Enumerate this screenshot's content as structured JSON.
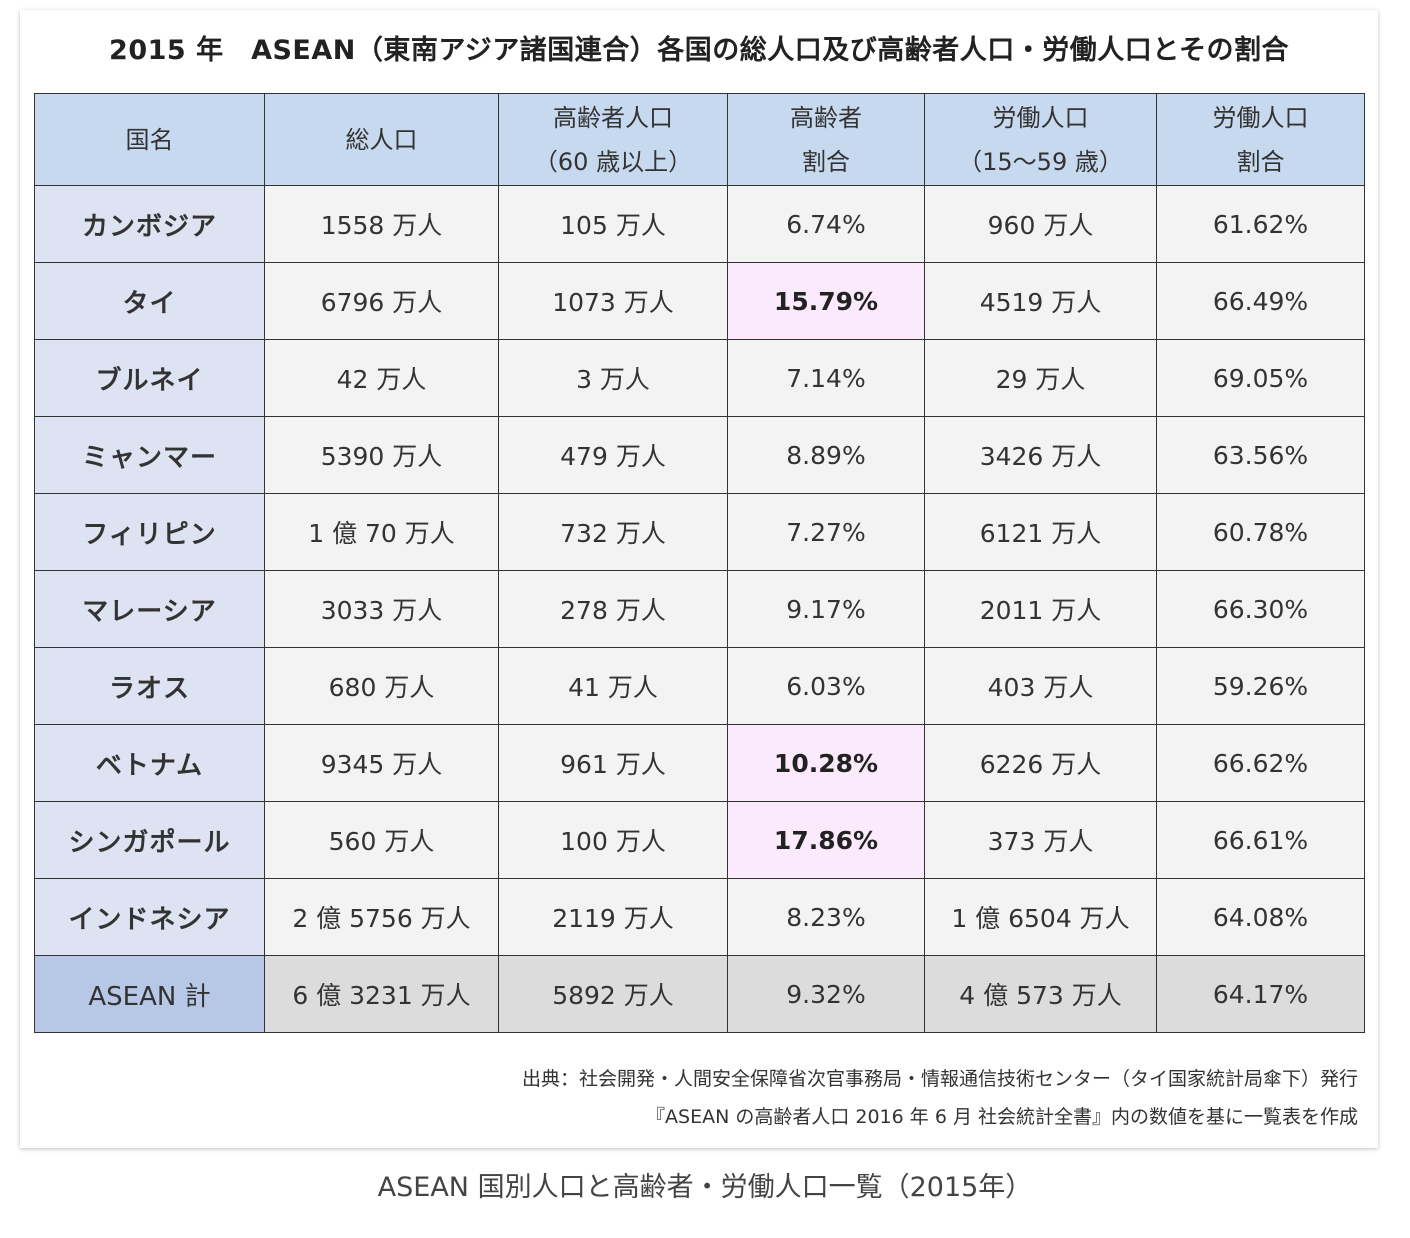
{
  "title": "2015 年　ASEAN（東南アジア諸国連合）各国の総人口及び高齢者人口・労働人口とその割合",
  "headers": [
    {
      "line1": "国名",
      "line2": ""
    },
    {
      "line1": "総人口",
      "line2": ""
    },
    {
      "line1": "高齢者人口",
      "line2": "（60 歳以上）"
    },
    {
      "line1": "高齢者",
      "line2": "割合"
    },
    {
      "line1": "労働人口",
      "line2": "（15〜59 歳）"
    },
    {
      "line1": "労働人口",
      "line2": "割合"
    }
  ],
  "rows": [
    {
      "country": "カンボジア",
      "total": "1558 万人",
      "elderly": "105 万人",
      "elderly_ratio": "6.74%",
      "labor": "960 万人",
      "labor_ratio": "61.62%"
    },
    {
      "country": "タイ",
      "total": "6796 万人",
      "elderly": "1073 万人",
      "elderly_ratio": "15.79%",
      "labor": "4519 万人",
      "labor_ratio": "66.49%"
    },
    {
      "country": "ブルネイ",
      "total": "42 万人",
      "elderly": "3 万人",
      "elderly_ratio": "7.14%",
      "labor": "29 万人",
      "labor_ratio": "69.05%"
    },
    {
      "country": "ミャンマー",
      "total": "5390 万人",
      "elderly": "479 万人",
      "elderly_ratio": "8.89%",
      "labor": "3426 万人",
      "labor_ratio": "63.56%"
    },
    {
      "country": "フィリピン",
      "total": "1 億 70 万人",
      "elderly": "732 万人",
      "elderly_ratio": "7.27%",
      "labor": "6121 万人",
      "labor_ratio": "60.78%"
    },
    {
      "country": "マレーシア",
      "total": "3033 万人",
      "elderly": "278 万人",
      "elderly_ratio": "9.17%",
      "labor": "2011 万人",
      "labor_ratio": "66.30%"
    },
    {
      "country": "ラオス",
      "total": "680 万人",
      "elderly": "41 万人",
      "elderly_ratio": "6.03%",
      "labor": "403 万人",
      "labor_ratio": "59.26%"
    },
    {
      "country": "ベトナム",
      "total": "9345 万人",
      "elderly": "961 万人",
      "elderly_ratio": "10.28%",
      "labor": "6226 万人",
      "labor_ratio": "66.62%"
    },
    {
      "country": "シンガポール",
      "total": "560 万人",
      "elderly": "100 万人",
      "elderly_ratio": "17.86%",
      "labor": "373 万人",
      "labor_ratio": "66.61%"
    },
    {
      "country": "インドネシア",
      "total": "2 億 5756 万人",
      "elderly": "2119 万人",
      "elderly_ratio": "8.23%",
      "labor": "1 億 6504 万人",
      "labor_ratio": "64.08%"
    }
  ],
  "total_row": {
    "country": "ASEAN 計",
    "total": "6 億 3231 万人",
    "elderly": "5892 万人",
    "elderly_ratio": "9.32%",
    "labor": "4 億 573 万人",
    "labor_ratio": "64.17%"
  },
  "highlight_color": "#fbeafb",
  "header_color": "#c7d9ee",
  "source": {
    "line1": "出典：社会開発・人間安全保障省次官事務局・情報通信技術センター（タイ国家統計局傘下）発行",
    "line2": "『ASEAN の高齢者人口 2016 年 6 月 社会統計全書』内の数値を基に一覧表を作成"
  },
  "caption": "ASEAN 国別人口と高齢者・労働人口一覧（2015年）"
}
